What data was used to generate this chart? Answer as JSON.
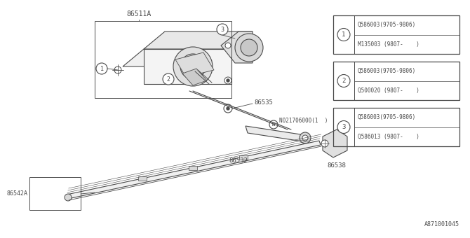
{
  "bg_color": "#ffffff",
  "line_color": "#4a4a4a",
  "diagram_id": "A871001045",
  "legend_boxes": [
    {
      "num": "1",
      "line1": "Q586003(9705-9806)",
      "line2": "M135003 (9807-    )"
    },
    {
      "num": "2",
      "line1": "Q586003(9705-9806)",
      "line2": "Q500020 (9807-    )"
    },
    {
      "num": "3",
      "line1": "Q586003(9705-9806)",
      "line2": "Q586013 (9807-    )"
    }
  ],
  "label_86511A": "86511A",
  "label_86535": "86535",
  "label_86532": "86532",
  "label_86542A": "86542A",
  "label_86538": "86538",
  "label_nut": "N021706000(1  )"
}
